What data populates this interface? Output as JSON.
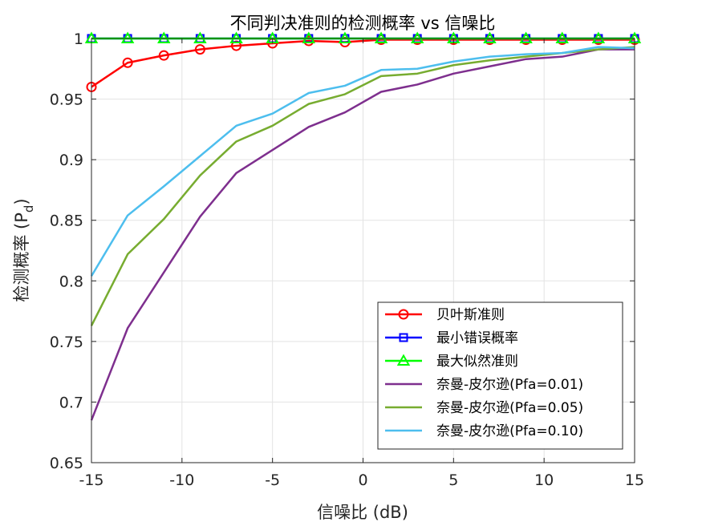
{
  "chart_data": {
    "type": "line",
    "title": "不同判决准则的检测概率 vs 信噪比",
    "xlabel": "信噪比 (dB)",
    "ylabel_main": "检测概率 (P",
    "ylabel_sub": "d",
    "ylabel_close": ")",
    "xlim": [
      -15,
      15
    ],
    "ylim": [
      0.65,
      1.0
    ],
    "xticks": [
      -15,
      -10,
      -5,
      0,
      5,
      10,
      15
    ],
    "xtick_labels": [
      "-15",
      "-10",
      "-5",
      "0",
      "5",
      "10",
      "15"
    ],
    "yticks": [
      0.65,
      0.7,
      0.75,
      0.8,
      0.85,
      0.9,
      0.95,
      1.0
    ],
    "ytick_labels": [
      "0.65",
      "0.7",
      "0.75",
      "0.8",
      "0.85",
      "0.9",
      "0.95",
      "1"
    ],
    "grid": true,
    "legend_position": "bottom-right",
    "x": [
      -15,
      -13,
      -11,
      -9,
      -7,
      -5,
      -3,
      -1,
      1,
      3,
      5,
      7,
      9,
      11,
      13,
      15
    ],
    "series": [
      {
        "name": "贝叶斯准则",
        "color": "#ff0000",
        "marker": "circle",
        "values": [
          0.96,
          0.98,
          0.986,
          0.991,
          0.994,
          0.996,
          0.998,
          0.997,
          0.999,
          0.999,
          0.999,
          0.999,
          0.999,
          0.999,
          0.999,
          0.999
        ]
      },
      {
        "name": "最小错误概率",
        "color": "#0000ff",
        "marker": "square",
        "values": [
          1,
          1,
          1,
          1,
          1,
          1,
          1,
          1,
          1,
          1,
          1,
          1,
          1,
          1,
          1,
          1
        ]
      },
      {
        "name": "最大似然准则",
        "color": "#00ff00",
        "marker": "triangle",
        "values": [
          1,
          1,
          1,
          1,
          1,
          1,
          1,
          1,
          1,
          1,
          1,
          1,
          1,
          1,
          1,
          1
        ]
      },
      {
        "name": "奈曼-皮尔逊(Pfa=0.01)",
        "color": "#7e2f8e",
        "marker": "none",
        "values": [
          0.685,
          0.761,
          0.807,
          0.853,
          0.889,
          0.908,
          0.927,
          0.939,
          0.956,
          0.962,
          0.971,
          0.977,
          0.983,
          0.985,
          0.991,
          0.991
        ]
      },
      {
        "name": "奈曼-皮尔逊(Pfa=0.05)",
        "color": "#77ac30",
        "marker": "none",
        "values": [
          0.763,
          0.822,
          0.851,
          0.887,
          0.915,
          0.928,
          0.946,
          0.954,
          0.969,
          0.971,
          0.978,
          0.982,
          0.985,
          0.988,
          0.991,
          0.993
        ]
      },
      {
        "name": "奈曼-皮尔逊(Pfa=0.10)",
        "color": "#4dbeee",
        "marker": "none",
        "values": [
          0.804,
          0.854,
          0.878,
          0.903,
          0.928,
          0.938,
          0.955,
          0.961,
          0.974,
          0.975,
          0.981,
          0.985,
          0.987,
          0.988,
          0.993,
          0.992
        ]
      }
    ]
  }
}
